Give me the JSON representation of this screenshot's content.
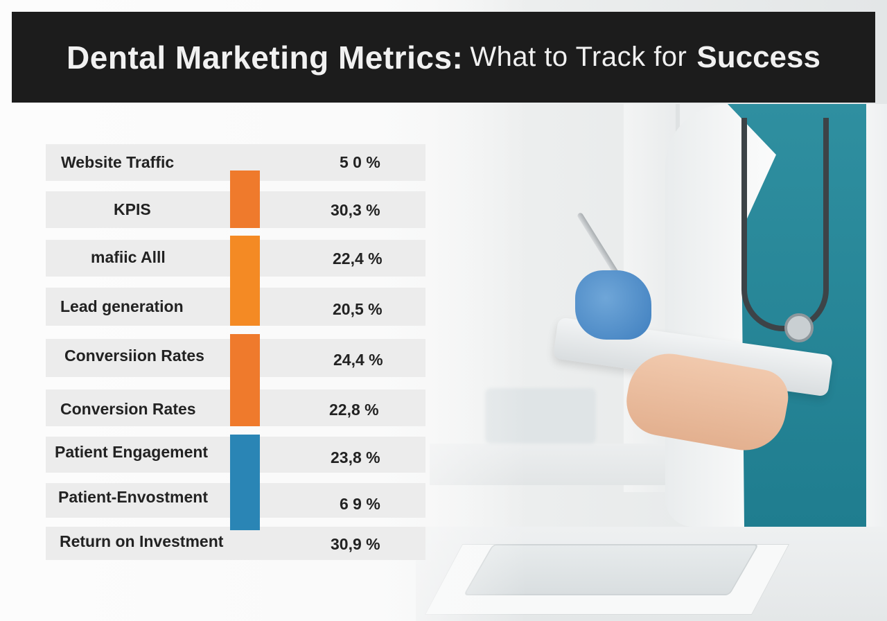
{
  "title": {
    "part1": "Dental Marketing Metrics:",
    "part2": "What to Track for",
    "part3": "Success"
  },
  "metrics": [
    {
      "label": "Website Traffic",
      "value": "5 0 %"
    },
    {
      "label": "KPIS",
      "value": "30,3 %"
    },
    {
      "label": "mafiic Alll",
      "value": "22,4 %"
    },
    {
      "label": "Lead generation",
      "value": "20,5 %"
    },
    {
      "label": "Conversiion Rates",
      "value": "24,4 %"
    },
    {
      "label": "Conversion Rates",
      "value": "22,8 %"
    },
    {
      "label": "Patient Engagement",
      "value": "23,8 %"
    },
    {
      "label": "Patient-Envostment",
      "value": "6 9 %"
    },
    {
      "label": "Return on Investment",
      "value": "30,9 %"
    }
  ],
  "colors": {
    "orange_dark": "#ef7a2c",
    "orange_light": "#f48a24",
    "blue": "#2a85b5",
    "banner": "#1c1c1c"
  }
}
